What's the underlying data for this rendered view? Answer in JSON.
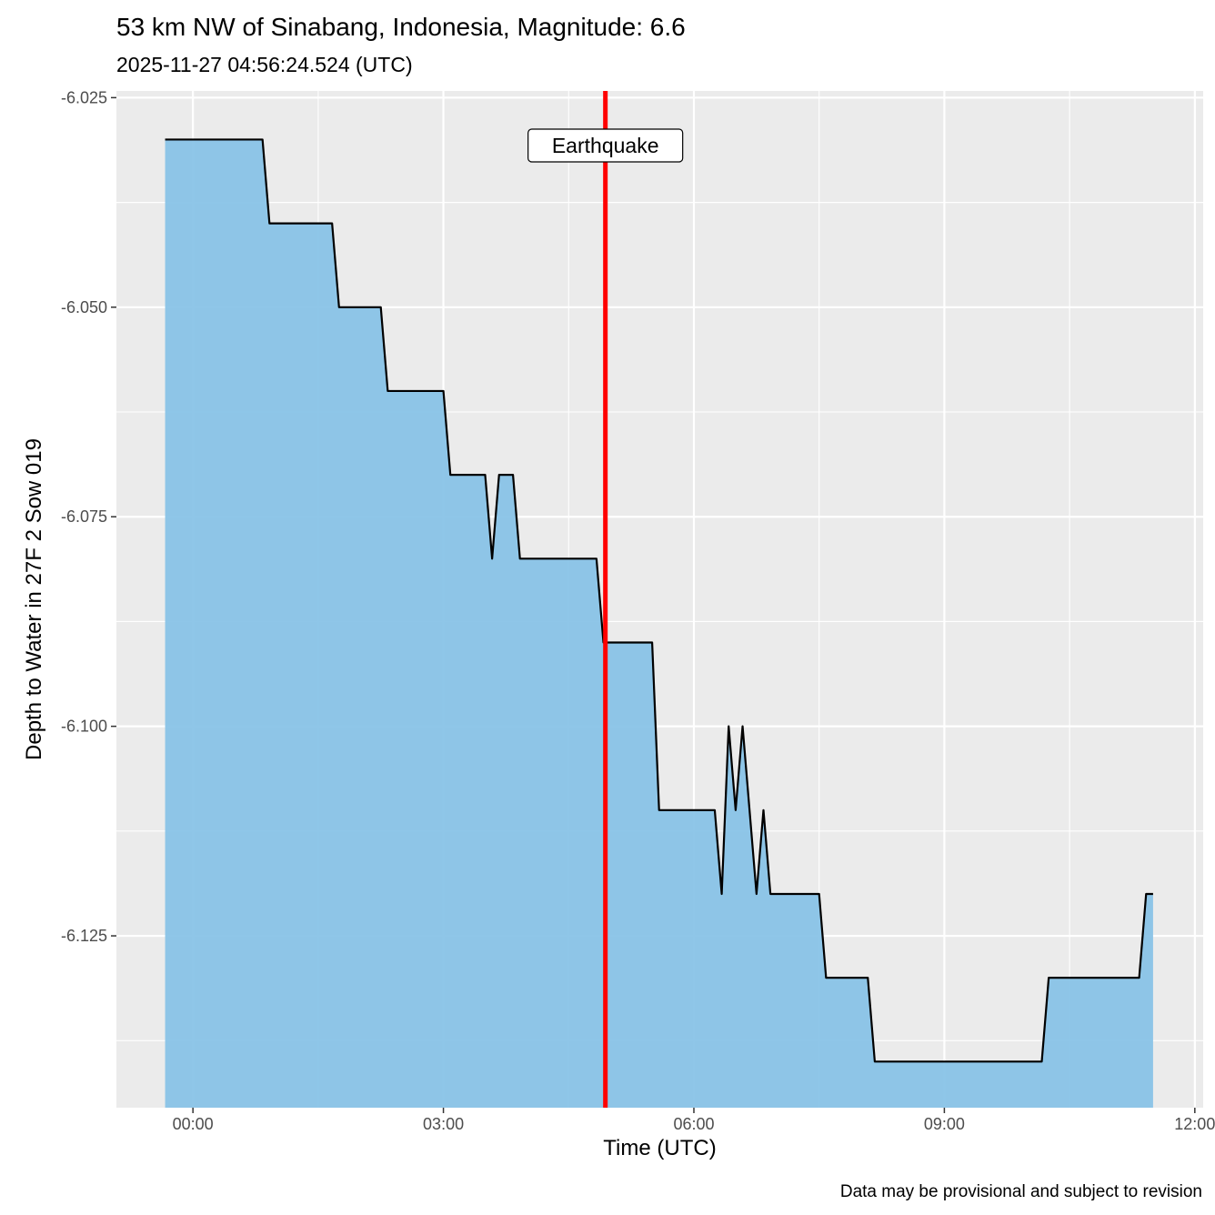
{
  "chart_data": {
    "type": "area",
    "title": "53 km NW of Sinabang, Indonesia, Magnitude: 6.6",
    "subtitle": "2025-11-27 04:56:24.524 (UTC)",
    "xlabel": "Time (UTC)",
    "ylabel": "Depth to Water in 27F 2 Sow 019",
    "caption": "Data may be provisional and subject to revision",
    "x_ticks": [
      "00:00",
      "03:00",
      "06:00",
      "09:00",
      "12:00"
    ],
    "y_ticks": [
      "-6.025",
      "-6.050",
      "-6.075",
      "-6.100",
      "-6.125"
    ],
    "y_tick_values": [
      -6.025,
      -6.05,
      -6.075,
      -6.1,
      -6.125
    ],
    "xlim": [
      "2025-11-26 23:05",
      "2025-11-27 12:06"
    ],
    "ylim": [
      -6.1455,
      -6.0242
    ],
    "grid": true,
    "fill_color": "#85C1E6",
    "line_color": "#000000",
    "event": {
      "time": "2025-11-27 04:56:24",
      "label": "Earthquake",
      "color": "#FF0000"
    },
    "points": [
      [
        "2025-11-26 23:40",
        -6.03
      ],
      [
        "2025-11-27 00:50",
        -6.03
      ],
      [
        "2025-11-27 00:55",
        -6.04
      ],
      [
        "2025-11-27 01:40",
        -6.04
      ],
      [
        "2025-11-27 01:45",
        -6.05
      ],
      [
        "2025-11-27 02:15",
        -6.05
      ],
      [
        "2025-11-27 02:20",
        -6.06
      ],
      [
        "2025-11-27 03:00",
        -6.06
      ],
      [
        "2025-11-27 03:05",
        -6.07
      ],
      [
        "2025-11-27 03:30",
        -6.07
      ],
      [
        "2025-11-27 03:35",
        -6.08
      ],
      [
        "2025-11-27 03:40",
        -6.07
      ],
      [
        "2025-11-27 03:50",
        -6.07
      ],
      [
        "2025-11-27 03:55",
        -6.08
      ],
      [
        "2025-11-27 04:50",
        -6.08
      ],
      [
        "2025-11-27 04:55",
        -6.09
      ],
      [
        "2025-11-27 05:30",
        -6.09
      ],
      [
        "2025-11-27 05:35",
        -6.11
      ],
      [
        "2025-11-27 06:15",
        -6.11
      ],
      [
        "2025-11-27 06:20",
        -6.12
      ],
      [
        "2025-11-27 06:25",
        -6.1
      ],
      [
        "2025-11-27 06:30",
        -6.11
      ],
      [
        "2025-11-27 06:35",
        -6.1
      ],
      [
        "2025-11-27 06:45",
        -6.12
      ],
      [
        "2025-11-27 06:50",
        -6.11
      ],
      [
        "2025-11-27 06:55",
        -6.12
      ],
      [
        "2025-11-27 07:30",
        -6.12
      ],
      [
        "2025-11-27 07:35",
        -6.13
      ],
      [
        "2025-11-27 08:05",
        -6.13
      ],
      [
        "2025-11-27 08:10",
        -6.14
      ],
      [
        "2025-11-27 10:10",
        -6.14
      ],
      [
        "2025-11-27 10:15",
        -6.13
      ],
      [
        "2025-11-27 11:20",
        -6.13
      ],
      [
        "2025-11-27 11:25",
        -6.12
      ],
      [
        "2025-11-27 11:30",
        -6.12
      ]
    ]
  }
}
